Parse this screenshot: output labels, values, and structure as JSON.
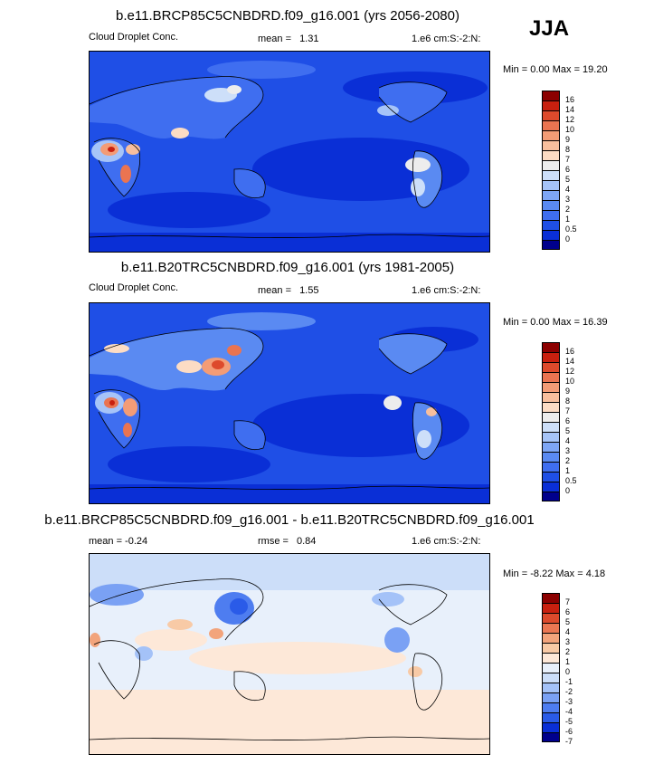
{
  "season": "JJA",
  "colors": {
    "abs_scale": [
      "#00008c",
      "#0a2fd6",
      "#1f4fe6",
      "#3f6ef0",
      "#5a8af2",
      "#7ea6f5",
      "#a6c4f8",
      "#cddff9",
      "#ededed",
      "#fcdcc4",
      "#f8bf9d",
      "#f39c76",
      "#ea7451",
      "#dd4a2c",
      "#c8200f",
      "#8c0000"
    ],
    "diff_scale": [
      "#00008c",
      "#0a2fd6",
      "#2a5be8",
      "#4e7df0",
      "#7aa1f4",
      "#a4c2f8",
      "#ccdef9",
      "#e8f0fb",
      "#fde8d8",
      "#f8caa6",
      "#f2a47c",
      "#ea7753",
      "#dc4a2c",
      "#c8200f",
      "#8c0000"
    ]
  },
  "panels": [
    {
      "title": "b.e11.BRCP85C5CNBDRD.f09_g16.001 (yrs 2056-2080)",
      "left_label": "Cloud Droplet Conc.",
      "stat_label": "mean =",
      "stat_value": "1.31",
      "units": "1.e6 cm:S:-2:N:",
      "minmax": "Min =   0.00 Max =  19.20",
      "colorbar_ticks": [
        "16",
        "14",
        "12",
        "10",
        "9",
        "8",
        "7",
        "6",
        "5",
        "4",
        "3",
        "2",
        "1",
        "0.5",
        "0"
      ]
    },
    {
      "title": "b.e11.B20TRC5CNBDRD.f09_g16.001 (yrs 1981-2005)",
      "left_label": "Cloud Droplet Conc.",
      "stat_label": "mean =",
      "stat_value": "1.55",
      "units": "1.e6 cm:S:-2:N:",
      "minmax": "Min =   0.00 Max =  16.39",
      "colorbar_ticks": [
        "16",
        "14",
        "12",
        "10",
        "9",
        "8",
        "7",
        "6",
        "5",
        "4",
        "3",
        "2",
        "1",
        "0.5",
        "0"
      ]
    },
    {
      "title": "b.e11.BRCP85C5CNBDRD.f09_g16.001 - b.e11.B20TRC5CNBDRD.f09_g16.001",
      "left_label": "mean =   -0.24",
      "stat_label": "rmse =",
      "stat_value": "0.84",
      "units": "1.e6 cm:S:-2:N:",
      "minmax": "Min =  -8.22 Max =   4.18",
      "colorbar_ticks": [
        "7",
        "6",
        "5",
        "4",
        "3",
        "2",
        "1",
        "0",
        "-1",
        "-2",
        "-3",
        "-4",
        "-5",
        "-6",
        "-7"
      ]
    }
  ]
}
